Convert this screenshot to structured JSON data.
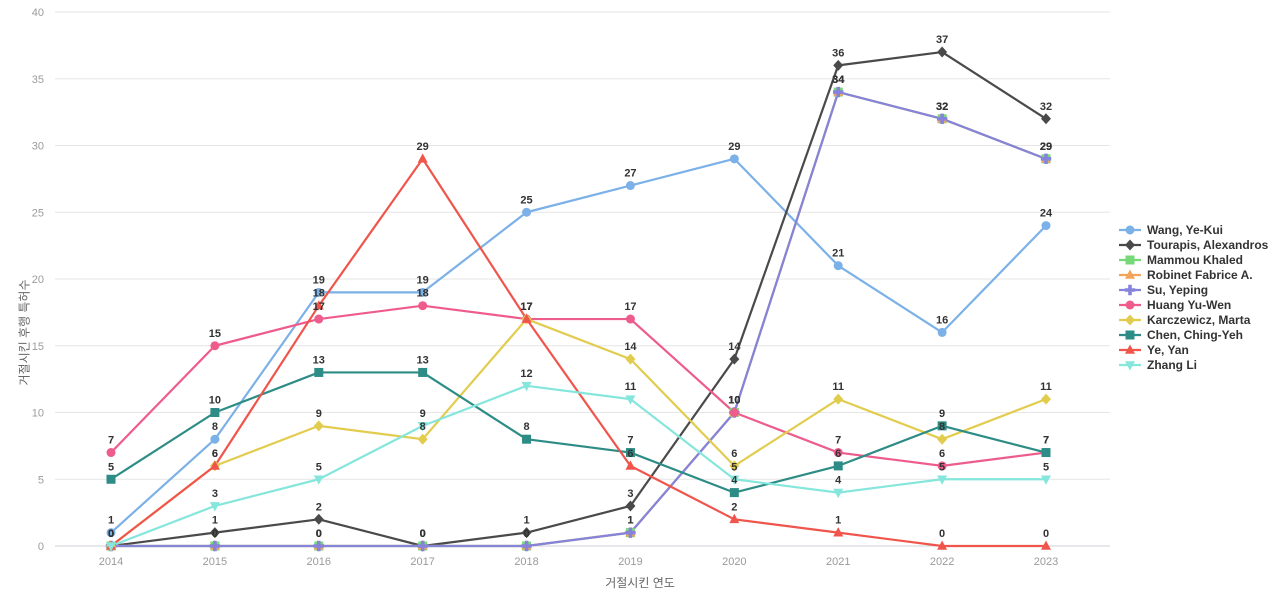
{
  "chart_data": {
    "type": "line",
    "title": "",
    "xlabel": "거절시킨 연도",
    "ylabel": "거절시킨 후행 특허수",
    "categories": [
      "2014",
      "2015",
      "2016",
      "2017",
      "2018",
      "2019",
      "2020",
      "2021",
      "2022",
      "2023"
    ],
    "ylim": [
      0,
      40
    ],
    "ytick_step": 5,
    "grid": true,
    "legend_position": "right",
    "series": [
      {
        "name": "Wang, Ye-Kui",
        "color": "#7cb1e8",
        "marker": "circle",
        "values": [
          1,
          8,
          19,
          19,
          25,
          27,
          29,
          21,
          16,
          24
        ]
      },
      {
        "name": "Tourapis, Alexandros",
        "color": "#4a4a4a",
        "marker": "diamond",
        "values": [
          0,
          1,
          2,
          0,
          1,
          3,
          14,
          36,
          37,
          32
        ]
      },
      {
        "name": "Mammou Khaled",
        "color": "#77d877",
        "marker": "square",
        "values": [
          0,
          0,
          0,
          0,
          0,
          1,
          10,
          34,
          32,
          29
        ]
      },
      {
        "name": "Robinet Fabrice A.",
        "color": "#f2a45c",
        "marker": "triangle-up",
        "values": [
          0,
          0,
          0,
          0,
          0,
          1,
          10,
          34,
          32,
          29
        ]
      },
      {
        "name": "Su, Yeping",
        "color": "#8583dc",
        "marker": "cross",
        "values": [
          0,
          0,
          0,
          0,
          0,
          1,
          10,
          34,
          32,
          29
        ]
      },
      {
        "name": "Huang Yu-Wen",
        "color": "#ee5c8c",
        "marker": "circle",
        "values": [
          7,
          15,
          17,
          18,
          17,
          17,
          10,
          7,
          6,
          7
        ]
      },
      {
        "name": "Karczewicz, Marta",
        "color": "#e2cc4e",
        "marker": "diamond",
        "values": [
          0,
          6,
          9,
          8,
          17,
          14,
          6,
          11,
          8,
          11
        ]
      },
      {
        "name": "Chen, Ching-Yeh",
        "color": "#2d8c85",
        "marker": "square",
        "values": [
          5,
          10,
          13,
          13,
          8,
          7,
          4,
          6,
          9,
          7
        ]
      },
      {
        "name": "Ye, Yan",
        "color": "#f0554c",
        "marker": "triangle-up",
        "values": [
          0,
          6,
          18,
          29,
          17,
          6,
          2,
          1,
          0,
          0
        ]
      },
      {
        "name": "Zhang Li",
        "color": "#85e6dc",
        "marker": "triangle-down",
        "values": [
          0,
          3,
          5,
          9,
          12,
          11,
          5,
          4,
          5,
          5
        ]
      }
    ],
    "style": {
      "grid_color": "#e6e6e6",
      "axis_line_color": "#ccd1da",
      "tick_label_color": "#9b9b9b",
      "data_label_color": "#333333",
      "background": "#ffffff"
    }
  }
}
